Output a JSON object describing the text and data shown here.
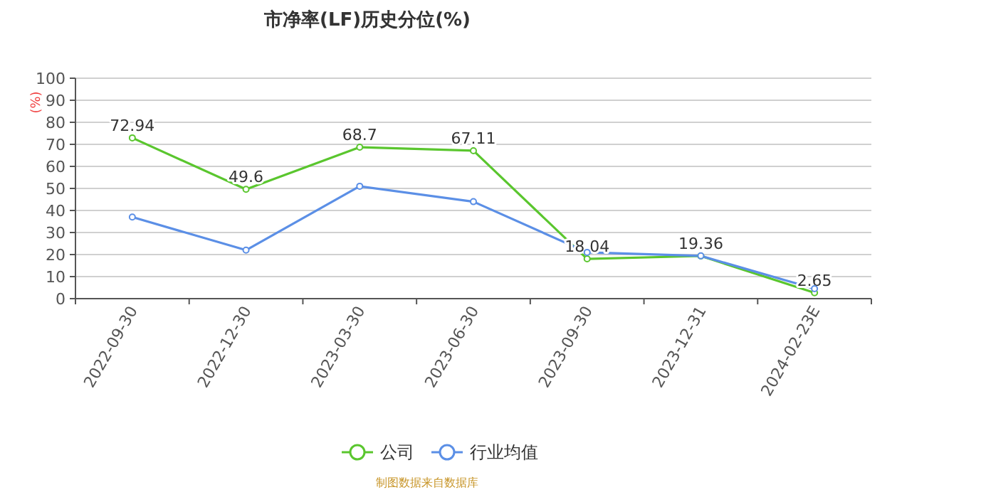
{
  "chart_data": {
    "type": "line",
    "title": "市净率(LF)历史分位(%)",
    "ylabel": "(%)",
    "categories": [
      "2022-09-30",
      "2022-12-30",
      "2023-03-30",
      "2023-06-30",
      "2023-09-30",
      "2023-12-31",
      "2024-02-23E"
    ],
    "series": [
      {
        "name": "公司",
        "color": "#5ac62e",
        "values": [
          72.94,
          49.6,
          68.7,
          67.11,
          18.04,
          19.36,
          2.65
        ],
        "value_labels": [
          "72.94",
          "49.6",
          "68.7",
          "67.11",
          "18.04",
          "19.36",
          "2.65"
        ]
      },
      {
        "name": "行业均值",
        "color": "#5b8fe6",
        "values": [
          37,
          22,
          51,
          44,
          21,
          19.4,
          4.5
        ]
      }
    ],
    "ylim": [
      0,
      100
    ],
    "yticks": [
      0,
      10,
      20,
      30,
      40,
      50,
      60,
      70,
      80,
      90,
      100
    ],
    "grid": "y",
    "legend": "bottom",
    "marker": "circle",
    "line_style": "solid",
    "annotations": [
      "制图数据来自数据库"
    ]
  }
}
